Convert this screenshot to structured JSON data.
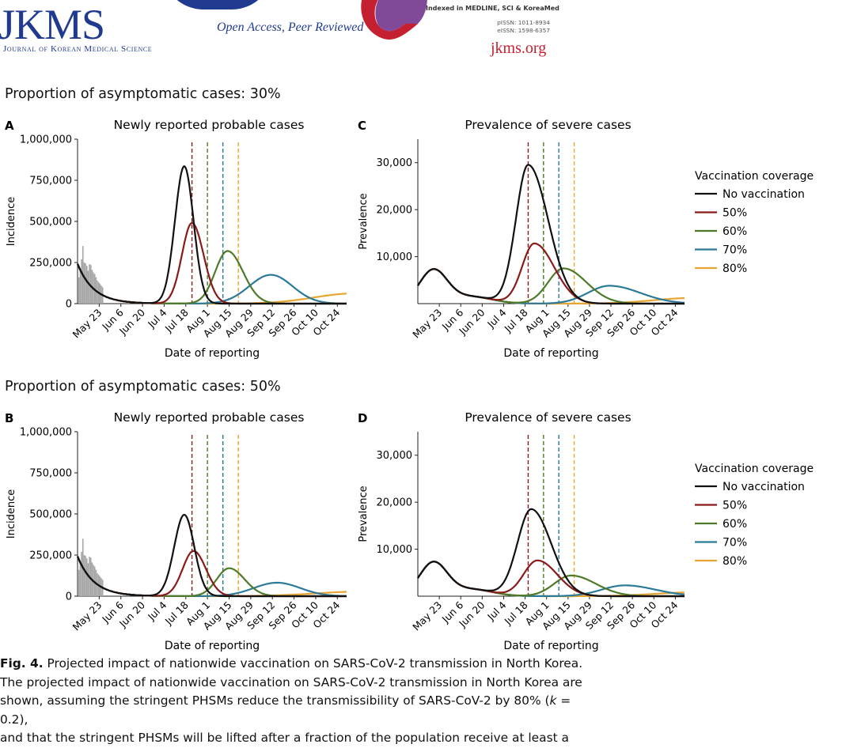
{
  "journal": {
    "abbrev": "JKMS",
    "name": "Journal of Korean Medical Science",
    "tagline": "Open Access, Peer Reviewed",
    "indexed": "Indexed in MEDLINE, SCI & KoreaMed",
    "pissn": "pISSN: 1011-8934",
    "eissn": "eISSN: 1598-6357",
    "site": "jkms.org"
  },
  "colors": {
    "no_vaccination": "#111111",
    "cov50": "#8b1a1a",
    "cov60": "#4f7a2a",
    "cov70": "#2b7a9a",
    "cov80": "#e6a633",
    "bars": "#a6a6a6"
  },
  "sections": [
    {
      "title": "Proportion of asymptomatic cases: 30%"
    },
    {
      "title": "Proportion of asymptomatic cases: 50%"
    }
  ],
  "legend": {
    "title": "Vaccination coverage",
    "entries": [
      "No vaccination",
      "50%",
      "60%",
      "70%",
      "80%"
    ]
  },
  "caption": {
    "label": "Fig. 4.",
    "title": "Projected impact of nationwide vaccination on SARS-CoV-2 transmission in North Korea.",
    "line2": "The projected impact of nationwide vaccination on SARS-CoV-2 transmission in North Korea are",
    "line3a": "shown, assuming the stringent PHSMs reduce the transmissibility of SARS-CoV-2 by 80% (",
    "line3k": "k",
    "line3b": " = 0.2),",
    "line4": "and that the stringent PHSMs will be lifted after a fraction of the population receive at least a"
  },
  "chart_data": [
    {
      "panel": "A",
      "type": "line",
      "title": "Newly reported probable cases",
      "xlabel": "Date of reporting",
      "ylabel": "Incidence",
      "x_ticks": [
        "May 23",
        "Jun 6",
        "Jun 20",
        "Jul 4",
        "Jul 18",
        "Aug 1",
        "Aug 15",
        "Aug 29",
        "Sep 12",
        "Sep 26",
        "Oct 10",
        "Oct 24"
      ],
      "y_ticks": [
        "0",
        "250,000",
        "500,000",
        "750,000",
        "1,000,000"
      ],
      "x_range_days": [
        -14,
        160
      ],
      "ylim": [
        0,
        1000000
      ],
      "observed_bars": [
        160000,
        215000,
        270000,
        350000,
        250000,
        245000,
        230000,
        200000,
        240000,
        235000,
        205000,
        190000,
        180000,
        160000,
        140000,
        130000,
        120000,
        110000,
        100000
      ],
      "vertical_lines_day": [
        60,
        70,
        80,
        90
      ],
      "series": [
        {
          "name": "No vaccination",
          "peak_day": 55,
          "peak": 835000,
          "sd_left": 6,
          "sd_right": 6,
          "baseline": true
        },
        {
          "name": "50%",
          "peak_day": 60,
          "peak": 490000,
          "sd_left": 6.5,
          "sd_right": 7.5
        },
        {
          "name": "60%",
          "peak_day": 83,
          "peak": 320000,
          "sd_left": 8,
          "sd_right": 10
        },
        {
          "name": "70%",
          "peak_day": 111,
          "peak": 175000,
          "sd_left": 14,
          "sd_right": 14
        },
        {
          "name": "80%",
          "peak_day": 165,
          "peak": 62000,
          "sd_left": 26,
          "sd_right": 30
        }
      ]
    },
    {
      "panel": "C",
      "type": "line",
      "title": "Prevalence of severe cases",
      "xlabel": "Date of reporting",
      "ylabel": "Prevalence",
      "x_ticks": [
        "May 23",
        "Jun 6",
        "Jun 20",
        "Jul 4",
        "Jul 18",
        "Aug 1",
        "Aug 15",
        "Aug 29",
        "Sep 12",
        "Sep 26",
        "Oct 10",
        "Oct 24"
      ],
      "y_ticks": [
        "10,000",
        "20,000",
        "30,000"
      ],
      "x_range_days": [
        -14,
        160
      ],
      "ylim": [
        0,
        35000
      ],
      "early_hump": {
        "peak_day": -4,
        "peak": 7000
      },
      "vertical_lines_day": [
        58,
        68,
        78,
        88
      ],
      "series": [
        {
          "name": "No vaccination",
          "peak_day": 58,
          "peak": 29500,
          "sd_left": 8,
          "sd_right": 13
        },
        {
          "name": "50%",
          "peak_day": 62,
          "peak": 12800,
          "sd_left": 8,
          "sd_right": 13
        },
        {
          "name": "60%",
          "peak_day": 81,
          "peak": 7500,
          "sd_left": 10,
          "sd_right": 15
        },
        {
          "name": "70%",
          "peak_day": 111,
          "peak": 3800,
          "sd_left": 14,
          "sd_right": 20
        },
        {
          "name": "80%",
          "peak_day": 165,
          "peak": 1200,
          "sd_left": 25,
          "sd_right": 30
        }
      ]
    },
    {
      "panel": "B",
      "type": "line",
      "title": "Newly reported probable cases",
      "xlabel": "Date of reporting",
      "ylabel": "Incidence",
      "x_ticks": [
        "May 23",
        "Jun 6",
        "Jun 20",
        "Jul 4",
        "Jul 18",
        "Aug 1",
        "Aug 15",
        "Aug 29",
        "Sep 12",
        "Sep 26",
        "Oct 10",
        "Oct 24"
      ],
      "y_ticks": [
        "0",
        "250,000",
        "500,000",
        "750,000",
        "1,000,000"
      ],
      "x_range_days": [
        -14,
        160
      ],
      "ylim": [
        0,
        1000000
      ],
      "observed_bars": [
        160000,
        215000,
        270000,
        350000,
        250000,
        245000,
        230000,
        200000,
        240000,
        235000,
        205000,
        190000,
        180000,
        160000,
        140000,
        130000,
        120000,
        110000,
        100000
      ],
      "vertical_lines_day": [
        60,
        70,
        80,
        90
      ],
      "series": [
        {
          "name": "No vaccination",
          "peak_day": 55,
          "peak": 495000,
          "sd_left": 6.5,
          "sd_right": 6.5,
          "baseline": true
        },
        {
          "name": "50%",
          "peak_day": 61,
          "peak": 275000,
          "sd_left": 7,
          "sd_right": 8
        },
        {
          "name": "60%",
          "peak_day": 84,
          "peak": 170000,
          "sd_left": 8,
          "sd_right": 10
        },
        {
          "name": "70%",
          "peak_day": 115,
          "peak": 82000,
          "sd_left": 15,
          "sd_right": 15
        },
        {
          "name": "80%",
          "peak_day": 170,
          "peak": 28000,
          "sd_left": 30,
          "sd_right": 30
        }
      ]
    },
    {
      "panel": "D",
      "type": "line",
      "title": "Prevalence of severe cases",
      "xlabel": "Date of reporting",
      "ylabel": "Prevalence",
      "x_ticks": [
        "May 23",
        "Jun 6",
        "Jun 20",
        "Jul 4",
        "Jul 18",
        "Aug 1",
        "Aug 15",
        "Aug 29",
        "Sep 12",
        "Sep 26",
        "Oct 10",
        "Oct 24"
      ],
      "y_ticks": [
        "10,000",
        "20,000",
        "30,000"
      ],
      "x_range_days": [
        -14,
        160
      ],
      "ylim": [
        0,
        35000
      ],
      "early_hump": {
        "peak_day": -4,
        "peak": 7000
      },
      "vertical_lines_day": [
        58,
        68,
        78,
        88
      ],
      "series": [
        {
          "name": "No vaccination",
          "peak_day": 60,
          "peak": 18500,
          "sd_left": 9,
          "sd_right": 13
        },
        {
          "name": "50%",
          "peak_day": 64,
          "peak": 7600,
          "sd_left": 9,
          "sd_right": 13
        },
        {
          "name": "60%",
          "peak_day": 86,
          "peak": 4400,
          "sd_left": 11,
          "sd_right": 16
        },
        {
          "name": "70%",
          "peak_day": 121,
          "peak": 2300,
          "sd_left": 15,
          "sd_right": 20
        },
        {
          "name": "80%",
          "peak_day": 165,
          "peak": 800,
          "sd_left": 25,
          "sd_right": 30
        }
      ]
    }
  ]
}
